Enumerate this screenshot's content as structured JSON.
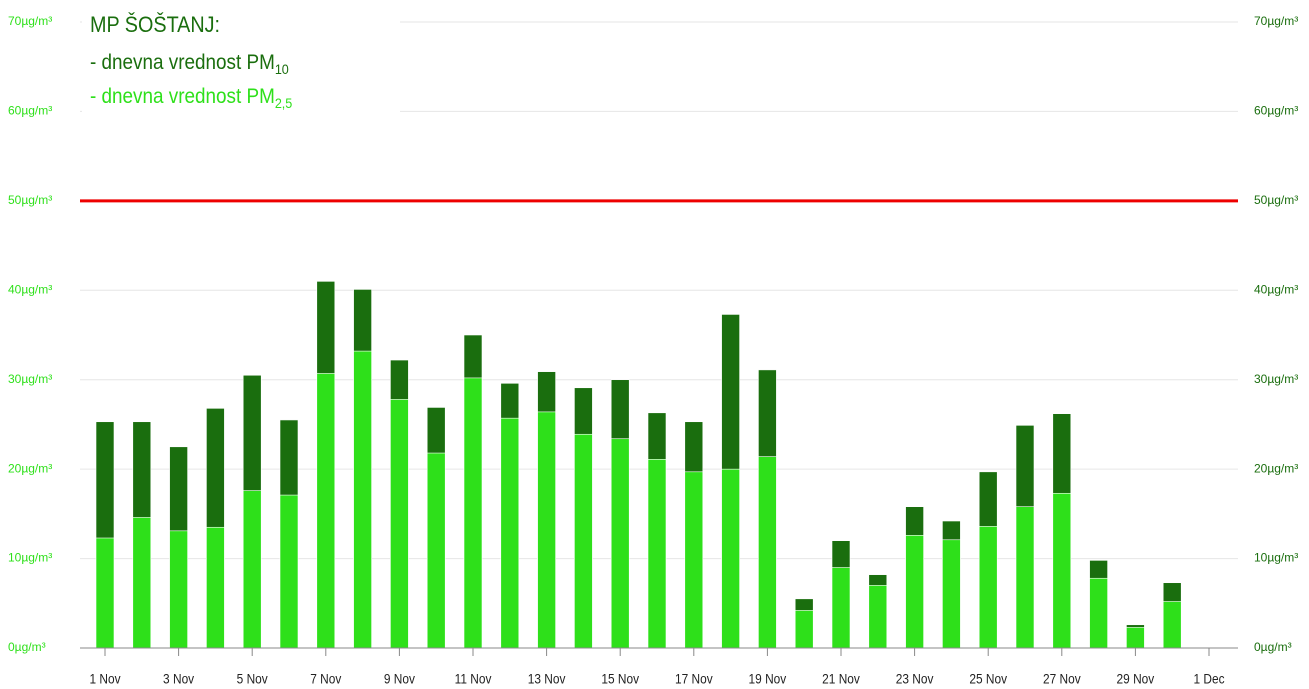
{
  "chart_data": {
    "type": "bar",
    "title": "MP ŠOŠTANJ:",
    "categories": [
      "1 Nov",
      null,
      "3 Nov",
      null,
      "5 Nov",
      null,
      "7 Nov",
      null,
      "9 Nov",
      null,
      "11 Nov",
      null,
      "13 Nov",
      null,
      "15 Nov",
      null,
      "17 Nov",
      null,
      "19 Nov",
      null,
      "21 Nov",
      null,
      "23 Nov",
      null,
      "25 Nov",
      null,
      "27 Nov",
      null,
      "29 Nov",
      null,
      "1 Dec"
    ],
    "series": [
      {
        "name": "- dnevna vrednost PM",
        "name_sub": "10",
        "color": "#1a6e0e",
        "axis": "y2",
        "values": [
          25.3,
          25.3,
          22.5,
          26.8,
          30.5,
          25.5,
          41.0,
          40.1,
          32.2,
          26.9,
          35.0,
          29.6,
          30.9,
          29.1,
          30.0,
          26.3,
          25.3,
          37.3,
          31.1,
          5.5,
          12.0,
          8.2,
          15.8,
          14.2,
          19.7,
          24.9,
          26.2,
          9.8,
          2.6,
          7.3,
          null
        ]
      },
      {
        "name": "- dnevna vrednost PM",
        "name_sub": "2,5",
        "color": "#2ee01a",
        "values": [
          12.3,
          14.6,
          13.1,
          13.5,
          17.6,
          17.1,
          30.7,
          33.2,
          27.8,
          21.8,
          30.2,
          25.7,
          26.4,
          23.9,
          23.4,
          21.1,
          19.7,
          20.0,
          21.4,
          4.2,
          9.0,
          7.0,
          12.6,
          12.1,
          13.6,
          15.8,
          17.3,
          7.8,
          2.3,
          5.2,
          null
        ]
      }
    ],
    "ylim": [
      0,
      70
    ],
    "yticks": [
      {
        "value": 0,
        "label": "0µg/m³"
      },
      {
        "value": 10,
        "label": "10µg/m³"
      },
      {
        "value": 20,
        "label": "20µg/m³"
      },
      {
        "value": 30,
        "label": "30µg/m³"
      },
      {
        "value": 40,
        "label": "40µg/m³"
      },
      {
        "value": 50,
        "label": "50µg/m³"
      },
      {
        "value": 60,
        "label": "60µg/m³"
      },
      {
        "value": 70,
        "label": "70µg/m³"
      }
    ],
    "y2lim": [
      0,
      70
    ],
    "y2ticks": [
      {
        "value": 0,
        "label": "0µg/m³"
      },
      {
        "value": 10,
        "label": "10µg/m³"
      },
      {
        "value": 20,
        "label": "20µg/m³"
      },
      {
        "value": 30,
        "label": "30µg/m³"
      },
      {
        "value": 40,
        "label": "40µg/m³"
      },
      {
        "value": 50,
        "label": "50µg/m³"
      },
      {
        "value": 60,
        "label": "60µg/m³"
      },
      {
        "value": 70,
        "label": "70µg/m³"
      }
    ],
    "ytick_color": "#2ee01a",
    "y2tick_color": "#1a6e0e",
    "grid": true,
    "reference_line": {
      "value": 50,
      "color": "#ee0000"
    }
  }
}
